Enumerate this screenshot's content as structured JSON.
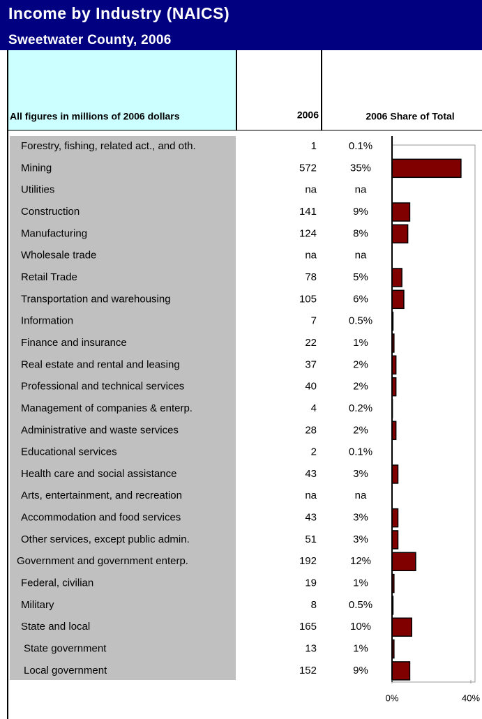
{
  "header": {
    "title": "Income by Industry (NAICS)",
    "subtitle": "Sweetwater County, 2006"
  },
  "table": {
    "unit_note": "All figures in millions of 2006 dollars",
    "col_year": "2006",
    "col_share": "2006 Share of Total",
    "rows": [
      [
        "Forestry, fishing, related act., and oth.",
        "1",
        "0.1%"
      ],
      [
        "Mining",
        "572",
        "35%"
      ],
      [
        "Utilities",
        "na",
        "na"
      ],
      [
        "Construction",
        "141",
        "9%"
      ],
      [
        "Manufacturing",
        "124",
        "8%"
      ],
      [
        "Wholesale trade",
        "na",
        "na"
      ],
      [
        "Retail Trade",
        "78",
        "5%"
      ],
      [
        "Transportation and warehousing",
        "105",
        "6%"
      ],
      [
        "Information",
        "7",
        "0.5%"
      ],
      [
        "Finance and insurance",
        "22",
        "1%"
      ],
      [
        "Real estate and rental and leasing",
        "37",
        "2%"
      ],
      [
        "Professional and technical services",
        "40",
        "2%"
      ],
      [
        "Management of companies & enterp.",
        "4",
        "0.2%"
      ],
      [
        "Administrative and waste services",
        "28",
        "2%"
      ],
      [
        "Educational services",
        "2",
        "0.1%"
      ],
      [
        "Health care and social assistance",
        "43",
        "3%"
      ],
      [
        "Arts, entertainment, and recreation",
        "na",
        "na"
      ],
      [
        "Accommodation and food services",
        "43",
        "3%"
      ],
      [
        "Other services, except public admin.",
        "51",
        "3%"
      ],
      [
        "Government and government enterp.",
        "192",
        "12%"
      ],
      [
        "Federal, civilian",
        "19",
        "1%"
      ],
      [
        "Military",
        "8",
        "0.5%"
      ],
      [
        "State and local",
        "165",
        "10%"
      ],
      [
        "State government",
        "13",
        "1%"
      ],
      [
        "Local government",
        "152",
        "9%"
      ]
    ]
  },
  "chart_data": {
    "type": "bar",
    "orientation": "horizontal",
    "color": "#800000",
    "values": [
      0.1,
      35,
      null,
      9,
      8,
      null,
      5,
      6,
      0.5,
      1,
      2,
      2,
      0.2,
      2,
      0.1,
      3,
      null,
      3,
      3,
      12,
      1,
      0.5,
      10,
      1,
      9
    ],
    "xlim": [
      0,
      40
    ],
    "xticks": [
      {
        "value": 0,
        "label": "0%"
      },
      {
        "value": 40,
        "label": "40%"
      }
    ]
  }
}
